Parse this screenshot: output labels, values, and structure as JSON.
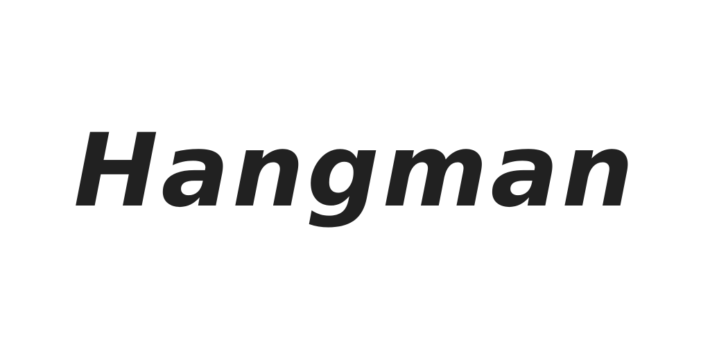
{
  "title": "Hangman",
  "colors": {
    "background": "#ffffff",
    "text": "#212121"
  }
}
